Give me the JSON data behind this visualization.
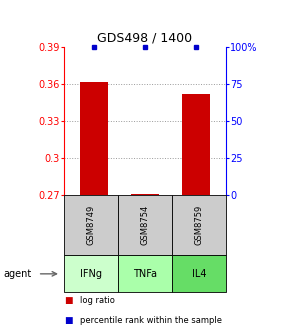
{
  "title": "GDS498 / 1400",
  "samples": [
    "GSM8749",
    "GSM8754",
    "GSM8759"
  ],
  "agents": [
    "IFNg",
    "TNFa",
    "IL4"
  ],
  "x_positions": [
    1,
    2,
    3
  ],
  "log_ratio_values": [
    0.362,
    0.271,
    0.352
  ],
  "log_ratio_base": 0.27,
  "percentile_values": [
    0.39,
    0.39,
    0.39
  ],
  "ylim_left": [
    0.27,
    0.39
  ],
  "yticks_left": [
    0.27,
    0.3,
    0.33,
    0.36,
    0.39
  ],
  "yticks_right": [
    0,
    25,
    50,
    75,
    100
  ],
  "bar_color": "#cc0000",
  "percentile_color": "#0000cc",
  "agent_colors": {
    "IFNg": "#ccffcc",
    "TNFa": "#aaffaa",
    "IL4": "#66dd66"
  },
  "sample_bg_color": "#cccccc",
  "legend_items": [
    {
      "color": "#cc0000",
      "label": "log ratio"
    },
    {
      "color": "#0000cc",
      "label": "percentile rank within the sample"
    }
  ]
}
